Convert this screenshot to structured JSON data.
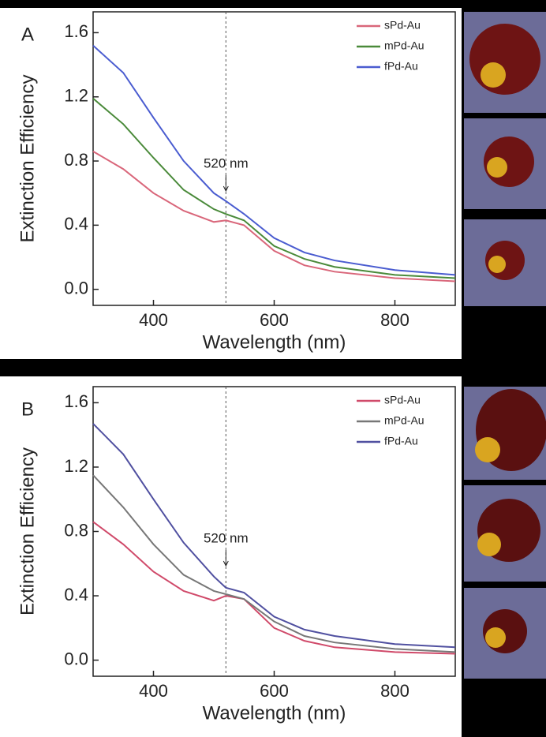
{
  "chart_data": [
    {
      "type": "line",
      "panel_label": "A",
      "xlabel": "Wavelength (nm)",
      "ylabel": "Extinction Efficiency",
      "x": [
        300,
        350,
        400,
        450,
        500,
        520,
        550,
        600,
        650,
        700,
        800,
        900
      ],
      "series": [
        {
          "name": "sPd-Au",
          "color": "#d9667a",
          "values": [
            0.86,
            0.75,
            0.6,
            0.49,
            0.42,
            0.43,
            0.4,
            0.24,
            0.15,
            0.11,
            0.07,
            0.05
          ]
        },
        {
          "name": "mPd-Au",
          "color": "#4a8a3a",
          "values": [
            1.19,
            1.03,
            0.82,
            0.62,
            0.5,
            0.47,
            0.43,
            0.27,
            0.19,
            0.14,
            0.09,
            0.07
          ]
        },
        {
          "name": "fPd-Au",
          "color": "#4a5cd0",
          "values": [
            1.52,
            1.35,
            1.07,
            0.8,
            0.6,
            0.55,
            0.47,
            0.32,
            0.23,
            0.18,
            0.12,
            0.09
          ]
        }
      ],
      "xlim": [
        300,
        900
      ],
      "ylim": [
        -0.1,
        1.73
      ],
      "xticks": [
        400,
        600,
        800
      ],
      "yticks": [
        {
          "value": 0,
          "label": "0.0"
        },
        0.4,
        0.8,
        1.2,
        1.6
      ],
      "annotation": {
        "text": "520 nm",
        "x": 520
      }
    },
    {
      "type": "line",
      "panel_label": "B",
      "xlabel": "Wavelength (nm)",
      "ylabel": "Extinction Efficiency",
      "x": [
        300,
        350,
        400,
        450,
        500,
        520,
        550,
        600,
        650,
        700,
        800,
        900
      ],
      "series": [
        {
          "name": "sPd-Au",
          "color": "#d04a6a",
          "values": [
            0.86,
            0.72,
            0.55,
            0.43,
            0.37,
            0.4,
            0.38,
            0.2,
            0.12,
            0.08,
            0.05,
            0.04
          ]
        },
        {
          "name": "mPd-Au",
          "color": "#777777",
          "values": [
            1.15,
            0.95,
            0.72,
            0.53,
            0.43,
            0.41,
            0.38,
            0.24,
            0.15,
            0.11,
            0.07,
            0.05
          ]
        },
        {
          "name": "fPd-Au",
          "color": "#5050a0",
          "values": [
            1.47,
            1.28,
            1.0,
            0.73,
            0.52,
            0.45,
            0.42,
            0.27,
            0.19,
            0.15,
            0.1,
            0.08
          ]
        }
      ],
      "xlim": [
        300,
        900
      ],
      "ylim": [
        -0.1,
        1.7
      ],
      "xticks": [
        400,
        600,
        800
      ],
      "yticks": [
        {
          "value": 0,
          "label": "0.0"
        },
        0.4,
        0.8,
        1.2,
        1.6
      ],
      "annotation": {
        "text": "520 nm",
        "x": 520
      }
    }
  ]
}
